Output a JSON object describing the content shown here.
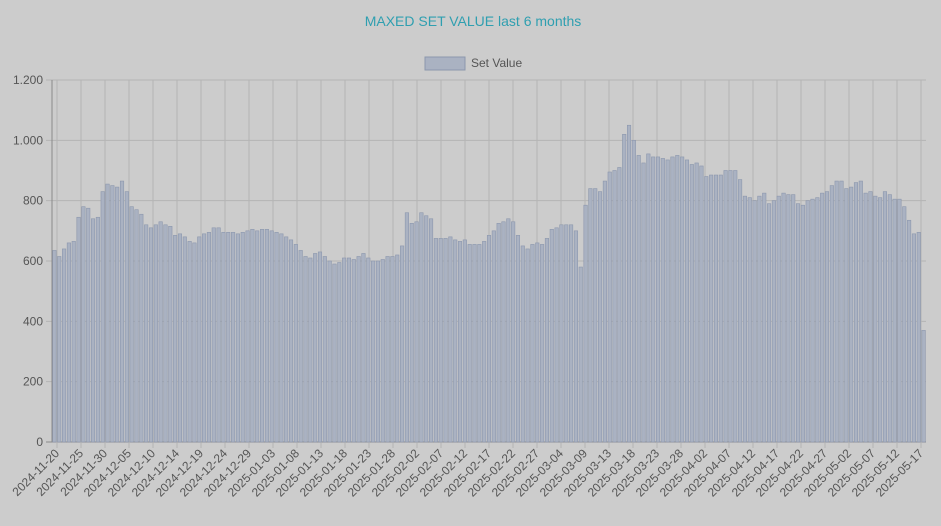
{
  "chart_data": {
    "type": "bar",
    "title": "MAXED SET VALUE last 6 months",
    "legend": {
      "position": "top",
      "label": "Set Value"
    },
    "colors": {
      "bar_fill": "#aab2c2",
      "bar_stroke": "#8c97ad",
      "title": "#2f9fb0",
      "background": "#cccccc"
    },
    "grid": true,
    "ylim": [
      0,
      1200
    ],
    "y_ticks": [
      0,
      200,
      400,
      600,
      800,
      1000,
      1200
    ],
    "y_tick_labels": [
      "0",
      "200",
      "400",
      "600",
      "800",
      "1.000",
      "1.200"
    ],
    "x_tick_labels": [
      "2024-11-20",
      "2024-11-25",
      "2024-11-30",
      "2024-12-05",
      "2024-12-10",
      "2024-12-14",
      "2024-12-19",
      "2024-12-24",
      "2024-12-29",
      "2025-01-03",
      "2025-01-08",
      "2025-01-13",
      "2025-01-18",
      "2025-01-23",
      "2025-01-28",
      "2025-02-02",
      "2025-02-07",
      "2025-02-12",
      "2025-02-17",
      "2025-02-22",
      "2025-02-27",
      "2025-03-04",
      "2025-03-09",
      "2025-03-13",
      "2025-03-18",
      "2025-03-23",
      "2025-03-28",
      "2025-04-02",
      "2025-04-07",
      "2025-04-12",
      "2025-04-17",
      "2025-04-22",
      "2025-04-27",
      "2025-05-02",
      "2025-05-07",
      "2025-05-12",
      "2025-05-17"
    ],
    "series": [
      {
        "name": "Set Value",
        "values": [
          635,
          615,
          640,
          660,
          665,
          745,
          780,
          775,
          740,
          745,
          830,
          855,
          850,
          845,
          865,
          830,
          780,
          770,
          755,
          720,
          710,
          720,
          730,
          720,
          715,
          685,
          690,
          680,
          665,
          660,
          680,
          690,
          695,
          710,
          710,
          695,
          695,
          695,
          690,
          695,
          700,
          705,
          700,
          705,
          705,
          700,
          695,
          690,
          680,
          670,
          655,
          635,
          615,
          610,
          625,
          630,
          615,
          600,
          590,
          595,
          610,
          610,
          605,
          615,
          625,
          610,
          600,
          600,
          605,
          615,
          615,
          620,
          650,
          760,
          725,
          730,
          760,
          750,
          740,
          675,
          675,
          675,
          680,
          670,
          665,
          670,
          655,
          655,
          655,
          665,
          685,
          700,
          725,
          730,
          740,
          730,
          685,
          650,
          640,
          655,
          660,
          655,
          675,
          705,
          710,
          720,
          720,
          720,
          700,
          580,
          785,
          840,
          840,
          830,
          865,
          895,
          900,
          910,
          1020,
          1050,
          1000,
          950,
          925,
          955,
          945,
          945,
          940,
          935,
          945,
          950,
          945,
          935,
          920,
          925,
          915,
          880,
          885,
          885,
          885,
          900,
          900,
          900,
          870,
          815,
          810,
          800,
          815,
          825,
          790,
          800,
          815,
          825,
          820,
          820,
          790,
          785,
          800,
          805,
          810,
          825,
          830,
          850,
          865,
          865,
          840,
          845,
          860,
          865,
          825,
          830,
          815,
          810,
          830,
          820,
          805,
          805,
          780,
          735,
          690,
          695,
          370
        ]
      }
    ]
  }
}
